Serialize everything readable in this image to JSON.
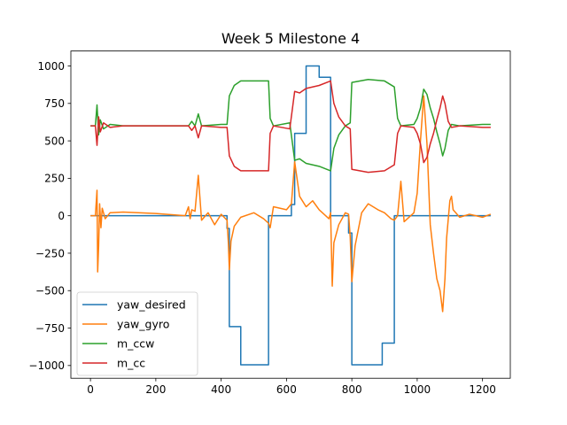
{
  "chart_data": {
    "type": "line",
    "title": "Week 5 Milestone 4",
    "xlabel": "",
    "ylabel": "",
    "xlim": [
      -60,
      1285
    ],
    "ylim": [
      -1085,
      1100
    ],
    "xticks": [
      0,
      200,
      400,
      600,
      800,
      1000,
      1200
    ],
    "yticks": [
      -1000,
      -750,
      -500,
      -250,
      0,
      250,
      500,
      750,
      1000
    ],
    "xtick_labels": [
      "0",
      "200",
      "400",
      "600",
      "800",
      "1000",
      "1200"
    ],
    "ytick_labels": [
      "−1000",
      "−750",
      "−500",
      "−250",
      "0",
      "250",
      "500",
      "750",
      "1000"
    ],
    "grid": false,
    "legend_position": "lower-left",
    "series": [
      {
        "name": "yaw_desired",
        "color": "#1f77b4",
        "points": [
          [
            0,
            0
          ],
          [
            418,
            0
          ],
          [
            418,
            -85
          ],
          [
            425,
            -85
          ],
          [
            425,
            -740
          ],
          [
            460,
            -740
          ],
          [
            460,
            -995
          ],
          [
            545,
            -995
          ],
          [
            545,
            0
          ],
          [
            615,
            0
          ],
          [
            615,
            75
          ],
          [
            625,
            75
          ],
          [
            625,
            550
          ],
          [
            660,
            550
          ],
          [
            660,
            1000
          ],
          [
            700,
            1000
          ],
          [
            700,
            925
          ],
          [
            735,
            925
          ],
          [
            735,
            0
          ],
          [
            790,
            0
          ],
          [
            790,
            -115
          ],
          [
            800,
            -115
          ],
          [
            800,
            -995
          ],
          [
            893,
            -995
          ],
          [
            893,
            -850
          ],
          [
            930,
            -850
          ],
          [
            930,
            0
          ],
          [
            1225,
            0
          ]
        ]
      },
      {
        "name": "yaw_gyro",
        "color": "#ff7f0e",
        "points": [
          [
            0,
            0
          ],
          [
            15,
            0
          ],
          [
            20,
            170
          ],
          [
            22,
            -375
          ],
          [
            25,
            -200
          ],
          [
            28,
            80
          ],
          [
            32,
            -80
          ],
          [
            36,
            50
          ],
          [
            45,
            -20
          ],
          [
            60,
            20
          ],
          [
            100,
            25
          ],
          [
            200,
            15
          ],
          [
            290,
            0
          ],
          [
            300,
            60
          ],
          [
            305,
            -20
          ],
          [
            310,
            40
          ],
          [
            320,
            30
          ],
          [
            330,
            270
          ],
          [
            340,
            -30
          ],
          [
            360,
            20
          ],
          [
            380,
            -60
          ],
          [
            400,
            10
          ],
          [
            418,
            -30
          ],
          [
            422,
            -180
          ],
          [
            425,
            -360
          ],
          [
            430,
            -170
          ],
          [
            440,
            -70
          ],
          [
            460,
            -10
          ],
          [
            500,
            20
          ],
          [
            530,
            -20
          ],
          [
            545,
            -50
          ],
          [
            550,
            -80
          ],
          [
            560,
            60
          ],
          [
            600,
            40
          ],
          [
            615,
            80
          ],
          [
            625,
            360
          ],
          [
            640,
            130
          ],
          [
            660,
            60
          ],
          [
            680,
            100
          ],
          [
            700,
            40
          ],
          [
            730,
            -20
          ],
          [
            735,
            20
          ],
          [
            740,
            -470
          ],
          [
            745,
            -180
          ],
          [
            760,
            -60
          ],
          [
            780,
            20
          ],
          [
            790,
            10
          ],
          [
            795,
            -140
          ],
          [
            800,
            -440
          ],
          [
            810,
            -200
          ],
          [
            830,
            20
          ],
          [
            850,
            80
          ],
          [
            880,
            40
          ],
          [
            900,
            20
          ],
          [
            920,
            -20
          ],
          [
            930,
            -30
          ],
          [
            940,
            0
          ],
          [
            950,
            230
          ],
          [
            960,
            -40
          ],
          [
            990,
            20
          ],
          [
            1000,
            150
          ],
          [
            1010,
            500
          ],
          [
            1020,
            800
          ],
          [
            1030,
            480
          ],
          [
            1040,
            -60
          ],
          [
            1050,
            -250
          ],
          [
            1060,
            -420
          ],
          [
            1070,
            -500
          ],
          [
            1078,
            -640
          ],
          [
            1085,
            -420
          ],
          [
            1090,
            -150
          ],
          [
            1100,
            100
          ],
          [
            1105,
            130
          ],
          [
            1110,
            40
          ],
          [
            1130,
            -10
          ],
          [
            1160,
            10
          ],
          [
            1200,
            -10
          ],
          [
            1225,
            10
          ]
        ]
      },
      {
        "name": "m_ccw",
        "color": "#2ca02c",
        "points": [
          [
            0,
            600
          ],
          [
            15,
            600
          ],
          [
            20,
            740
          ],
          [
            25,
            540
          ],
          [
            30,
            640
          ],
          [
            40,
            580
          ],
          [
            60,
            610
          ],
          [
            100,
            600
          ],
          [
            200,
            600
          ],
          [
            300,
            600
          ],
          [
            310,
            630
          ],
          [
            320,
            600
          ],
          [
            330,
            680
          ],
          [
            340,
            600
          ],
          [
            400,
            610
          ],
          [
            418,
            610
          ],
          [
            425,
            800
          ],
          [
            440,
            870
          ],
          [
            460,
            900
          ],
          [
            500,
            900
          ],
          [
            545,
            900
          ],
          [
            550,
            650
          ],
          [
            560,
            600
          ],
          [
            610,
            620
          ],
          [
            625,
            370
          ],
          [
            640,
            380
          ],
          [
            660,
            350
          ],
          [
            700,
            330
          ],
          [
            735,
            300
          ],
          [
            745,
            450
          ],
          [
            760,
            540
          ],
          [
            780,
            600
          ],
          [
            795,
            620
          ],
          [
            800,
            890
          ],
          [
            850,
            910
          ],
          [
            900,
            900
          ],
          [
            930,
            860
          ],
          [
            940,
            650
          ],
          [
            950,
            600
          ],
          [
            990,
            610
          ],
          [
            1000,
            650
          ],
          [
            1010,
            720
          ],
          [
            1020,
            845
          ],
          [
            1030,
            810
          ],
          [
            1040,
            720
          ],
          [
            1050,
            650
          ],
          [
            1060,
            560
          ],
          [
            1070,
            480
          ],
          [
            1078,
            400
          ],
          [
            1085,
            450
          ],
          [
            1095,
            570
          ],
          [
            1105,
            610
          ],
          [
            1130,
            600
          ],
          [
            1200,
            610
          ],
          [
            1225,
            610
          ]
        ]
      },
      {
        "name": "m_cc",
        "color": "#d62728",
        "points": [
          [
            0,
            600
          ],
          [
            15,
            600
          ],
          [
            20,
            470
          ],
          [
            25,
            660
          ],
          [
            30,
            560
          ],
          [
            40,
            620
          ],
          [
            60,
            590
          ],
          [
            100,
            600
          ],
          [
            200,
            600
          ],
          [
            300,
            600
          ],
          [
            310,
            570
          ],
          [
            320,
            600
          ],
          [
            330,
            520
          ],
          [
            340,
            600
          ],
          [
            400,
            590
          ],
          [
            418,
            590
          ],
          [
            425,
            400
          ],
          [
            440,
            330
          ],
          [
            460,
            300
          ],
          [
            500,
            300
          ],
          [
            545,
            300
          ],
          [
            550,
            550
          ],
          [
            560,
            600
          ],
          [
            610,
            580
          ],
          [
            625,
            830
          ],
          [
            640,
            820
          ],
          [
            660,
            850
          ],
          [
            700,
            870
          ],
          [
            735,
            900
          ],
          [
            745,
            750
          ],
          [
            760,
            660
          ],
          [
            780,
            600
          ],
          [
            795,
            580
          ],
          [
            800,
            310
          ],
          [
            850,
            290
          ],
          [
            900,
            300
          ],
          [
            930,
            340
          ],
          [
            940,
            550
          ],
          [
            950,
            600
          ],
          [
            990,
            590
          ],
          [
            1000,
            550
          ],
          [
            1010,
            480
          ],
          [
            1020,
            355
          ],
          [
            1030,
            390
          ],
          [
            1040,
            480
          ],
          [
            1050,
            550
          ],
          [
            1060,
            640
          ],
          [
            1070,
            720
          ],
          [
            1078,
            800
          ],
          [
            1085,
            750
          ],
          [
            1095,
            630
          ],
          [
            1105,
            590
          ],
          [
            1130,
            600
          ],
          [
            1200,
            590
          ],
          [
            1225,
            590
          ]
        ]
      }
    ]
  }
}
